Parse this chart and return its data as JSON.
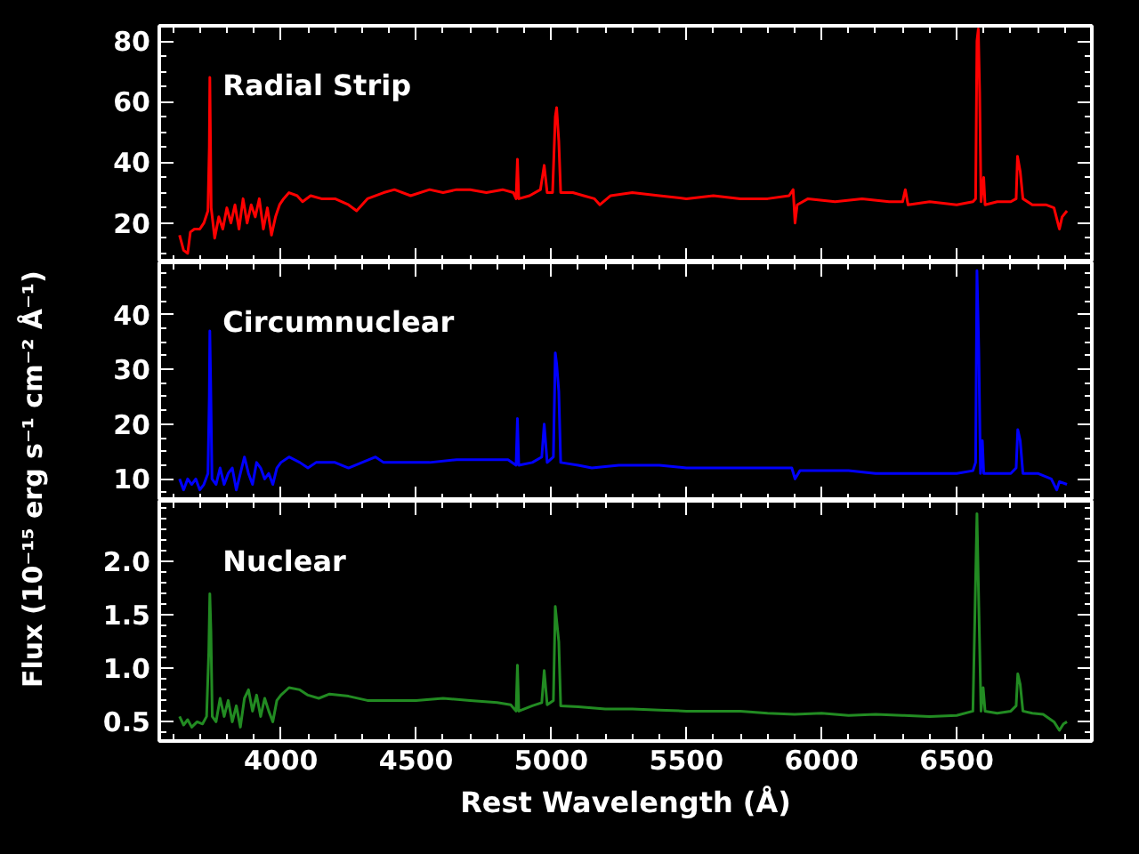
{
  "chart_data": [
    {
      "type": "line",
      "xlim": [
        3550,
        7000
      ],
      "ylim": [
        7,
        85
      ],
      "xticks": [
        4000,
        4500,
        5000,
        5500,
        6000,
        6500
      ],
      "yticks": [
        20,
        40,
        60,
        80
      ],
      "tick_labels": "y",
      "grid": false,
      "legend": false,
      "series": [
        {
          "name": "Radial Strip",
          "color": "#ff0000",
          "x": [
            3625,
            3640,
            3655,
            3665,
            3680,
            3700,
            3715,
            3730,
            3735,
            3737,
            3742,
            3755,
            3770,
            3785,
            3800,
            3815,
            3830,
            3845,
            3860,
            3875,
            3890,
            3905,
            3920,
            3935,
            3950,
            3965,
            3980,
            3995,
            4010,
            4030,
            4060,
            4080,
            4110,
            4150,
            4200,
            4250,
            4280,
            4320,
            4380,
            4420,
            4480,
            4550,
            4600,
            4650,
            4700,
            4760,
            4820,
            4860,
            4870,
            4875,
            4880,
            4920,
            4960,
            4974,
            4985,
            5005,
            5015,
            5020,
            5028,
            5035,
            5080,
            5120,
            5160,
            5180,
            5220,
            5300,
            5400,
            5500,
            5600,
            5700,
            5800,
            5880,
            5895,
            5902,
            5910,
            5950,
            6050,
            6150,
            6250,
            6300,
            6310,
            6320,
            6400,
            6500,
            6560,
            6570,
            6575,
            6580,
            6585,
            6590,
            6600,
            6605,
            6650,
            6700,
            6720,
            6725,
            6735,
            6745,
            6780,
            6830,
            6860,
            6880,
            6890,
            6908
          ],
          "values": [
            16,
            11,
            10,
            17,
            18,
            18,
            20,
            24,
            45,
            68,
            25,
            15,
            22,
            18,
            25,
            20,
            26,
            18,
            28,
            20,
            26,
            22,
            28,
            18,
            25,
            16,
            22,
            26,
            28,
            30,
            29,
            27,
            29,
            28,
            28,
            26,
            24,
            28,
            30,
            31,
            29,
            31,
            30,
            31,
            31,
            30,
            31,
            30,
            28,
            41,
            28,
            29,
            31,
            39,
            30,
            30,
            55,
            58,
            47,
            30,
            30,
            29,
            28,
            26,
            29,
            30,
            29,
            28,
            29,
            28,
            28,
            29,
            31,
            20,
            26,
            28,
            27,
            28,
            27,
            27,
            31,
            26,
            27,
            26,
            27,
            28,
            80,
            84,
            63,
            27,
            35,
            26,
            27,
            27,
            28,
            42,
            37,
            28,
            26,
            26,
            25,
            18,
            22,
            24
          ]
        }
      ]
    },
    {
      "type": "line",
      "xlim": [
        3550,
        7000
      ],
      "ylim": [
        6,
        49.5
      ],
      "xticks": [
        4000,
        4500,
        5000,
        5500,
        6000,
        6500
      ],
      "yticks": [
        10,
        20,
        30,
        40
      ],
      "tick_labels": "y",
      "grid": false,
      "legend": false,
      "ylabel": "Flux (10⁻¹⁵ erg s⁻¹ cm⁻² Å⁻¹)",
      "series": [
        {
          "name": "Circumnuclear",
          "color": "#0000ff",
          "x": [
            3625,
            3640,
            3655,
            3670,
            3685,
            3700,
            3715,
            3730,
            3735,
            3737,
            3740,
            3745,
            3760,
            3775,
            3790,
            3805,
            3820,
            3835,
            3850,
            3865,
            3880,
            3895,
            3910,
            3925,
            3940,
            3955,
            3970,
            3985,
            4000,
            4030,
            4070,
            4100,
            4130,
            4200,
            4250,
            4300,
            4350,
            4380,
            4450,
            4550,
            4650,
            4750,
            4840,
            4870,
            4875,
            4880,
            4930,
            4965,
            4974,
            4985,
            5008,
            5015,
            5020,
            5028,
            5035,
            5100,
            5150,
            5250,
            5400,
            5500,
            5650,
            5800,
            5890,
            5902,
            5920,
            6000,
            6100,
            6200,
            6300,
            6400,
            6500,
            6560,
            6570,
            6575,
            6582,
            6588,
            6595,
            6600,
            6650,
            6700,
            6720,
            6726,
            6735,
            6745,
            6800,
            6850,
            6870,
            6880,
            6908
          ],
          "values": [
            10,
            8,
            10,
            9,
            10,
            8,
            9,
            11,
            25,
            37,
            28,
            10,
            9,
            12,
            9,
            11,
            12,
            8,
            11,
            14,
            11,
            9,
            13,
            12,
            10,
            11,
            9,
            12,
            13,
            14,
            13,
            12,
            13,
            13,
            12,
            13,
            14,
            13,
            13,
            13,
            13.5,
            13.5,
            13.5,
            12.5,
            21,
            12.5,
            13,
            14,
            20,
            13,
            14,
            33,
            31,
            26,
            13,
            12.5,
            12,
            12.5,
            12.5,
            12,
            12,
            12,
            12,
            10,
            11.5,
            11.5,
            11.5,
            11,
            11,
            11,
            11,
            11.5,
            13,
            48,
            33,
            11,
            17,
            11,
            11,
            11,
            12,
            19,
            17,
            11,
            11,
            10,
            8,
            9.5,
            9
          ]
        }
      ]
    },
    {
      "type": "line",
      "xlim": [
        3550,
        7000
      ],
      "ylim": [
        0.32,
        2.57
      ],
      "xticks": [
        4000,
        4500,
        5000,
        5500,
        6000,
        6500
      ],
      "yticks": [
        {
          "value": 0.5,
          "label": "0.5"
        },
        {
          "value": 1.0,
          "label": "1.0"
        },
        {
          "value": 1.5,
          "label": "1.5"
        },
        {
          "value": 2.0,
          "label": "2.0"
        }
      ],
      "grid": false,
      "legend": false,
      "xlabel": "Rest Wavelength (Å)",
      "series": [
        {
          "name": "Nuclear",
          "color": "#228b22",
          "x": [
            3625,
            3640,
            3655,
            3670,
            3690,
            3710,
            3725,
            3733,
            3737,
            3741,
            3746,
            3760,
            3775,
            3790,
            3805,
            3820,
            3835,
            3850,
            3865,
            3880,
            3895,
            3910,
            3925,
            3940,
            3955,
            3970,
            3985,
            4000,
            4030,
            4070,
            4100,
            4140,
            4180,
            4250,
            4320,
            4400,
            4500,
            4600,
            4700,
            4800,
            4850,
            4870,
            4875,
            4880,
            4930,
            4965,
            4974,
            4985,
            5008,
            5015,
            5020,
            5028,
            5035,
            5100,
            5200,
            5300,
            5400,
            5500,
            5600,
            5700,
            5800,
            5900,
            6000,
            6100,
            6200,
            6300,
            6400,
            6500,
            6560,
            6575,
            6582,
            6590,
            6598,
            6605,
            6650,
            6700,
            6720,
            6726,
            6735,
            6745,
            6780,
            6820,
            6860,
            6880,
            6895,
            6908
          ],
          "values": [
            0.55,
            0.47,
            0.52,
            0.45,
            0.5,
            0.48,
            0.55,
            1.15,
            1.7,
            1.35,
            0.55,
            0.5,
            0.72,
            0.55,
            0.7,
            0.5,
            0.65,
            0.45,
            0.72,
            0.8,
            0.6,
            0.75,
            0.55,
            0.72,
            0.6,
            0.5,
            0.7,
            0.75,
            0.82,
            0.8,
            0.75,
            0.72,
            0.76,
            0.74,
            0.7,
            0.7,
            0.7,
            0.72,
            0.7,
            0.68,
            0.66,
            0.6,
            1.03,
            0.6,
            0.65,
            0.68,
            0.98,
            0.66,
            0.7,
            1.58,
            1.45,
            1.25,
            0.65,
            0.64,
            0.62,
            0.62,
            0.61,
            0.6,
            0.6,
            0.6,
            0.58,
            0.57,
            0.58,
            0.56,
            0.57,
            0.56,
            0.55,
            0.56,
            0.6,
            2.45,
            1.57,
            0.6,
            0.82,
            0.6,
            0.58,
            0.6,
            0.65,
            0.95,
            0.85,
            0.6,
            0.58,
            0.57,
            0.5,
            0.42,
            0.48,
            0.5
          ]
        }
      ]
    }
  ]
}
